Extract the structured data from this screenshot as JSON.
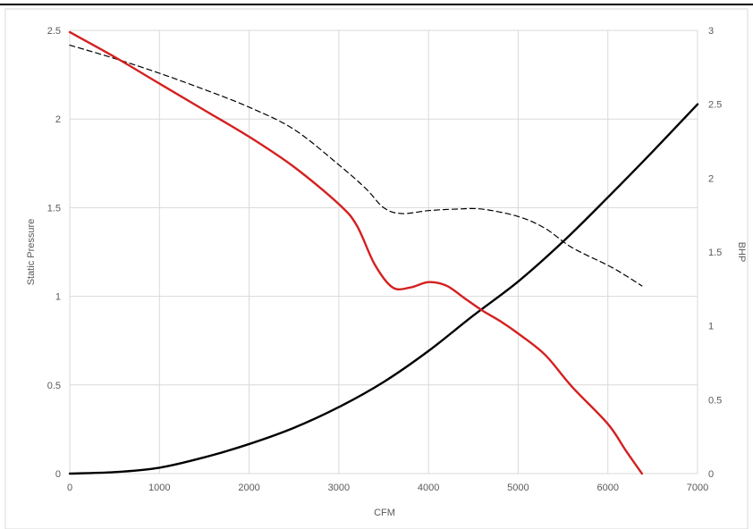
{
  "chart_data": {
    "type": "line",
    "title": "",
    "xlabel": "CFM",
    "ylabel_left": "Static Pressure",
    "ylabel_right": "BHP",
    "xlim": [
      0,
      7000
    ],
    "ylim_left": [
      0,
      2.5
    ],
    "ylim_right": [
      0,
      3
    ],
    "x_ticks": [
      "0",
      "1000",
      "2000",
      "3000",
      "4000",
      "5000",
      "6000",
      "7000"
    ],
    "y_left_ticks": [
      "0",
      "0.5",
      "1",
      "1.5",
      "2",
      "2.5"
    ],
    "y_right_ticks": [
      "0",
      "0.5",
      "1",
      "1.5",
      "2",
      "2.5",
      "3"
    ],
    "grid": true,
    "legend": "none",
    "colors": {
      "static_pressure": "#d42020",
      "bhp": "#000000",
      "system_curve": "#000000",
      "grid": "#d9d9d9",
      "axis_text": "#595959",
      "frame_top": "#000000"
    },
    "series": [
      {
        "axis": "left",
        "style": "solid-red",
        "x": [
          0,
          500,
          1000,
          1500,
          2000,
          2500,
          3000,
          3200,
          3400,
          3600,
          3800,
          4000,
          4200,
          4400,
          4600,
          4800,
          5000,
          5300,
          5600,
          6000,
          6200,
          6380
        ],
        "y": [
          2.49,
          2.35,
          2.2,
          2.05,
          1.9,
          1.73,
          1.52,
          1.4,
          1.18,
          1.05,
          1.05,
          1.08,
          1.06,
          0.99,
          0.92,
          0.86,
          0.79,
          0.67,
          0.49,
          0.28,
          0.13,
          0.0
        ]
      },
      {
        "axis": "right",
        "style": "solid-black",
        "x": [
          0,
          500,
          1000,
          1500,
          2000,
          2500,
          3000,
          3500,
          4000,
          4500,
          5000,
          5500,
          6000,
          6500,
          7000
        ],
        "y": [
          0.0,
          0.01,
          0.04,
          0.11,
          0.2,
          0.31,
          0.45,
          0.62,
          0.83,
          1.07,
          1.3,
          1.57,
          1.87,
          2.18,
          2.5
        ]
      },
      {
        "axis": "right",
        "style": "dashed-black",
        "x": [
          0,
          500,
          1000,
          1500,
          2000,
          2500,
          3000,
          3300,
          3500,
          3700,
          4000,
          4300,
          4600,
          5000,
          5300,
          5600,
          6000,
          6200,
          6380
        ],
        "y": [
          2.9,
          2.81,
          2.71,
          2.6,
          2.48,
          2.33,
          2.09,
          1.93,
          1.8,
          1.76,
          1.78,
          1.79,
          1.79,
          1.74,
          1.66,
          1.53,
          1.41,
          1.34,
          1.27
        ]
      }
    ]
  }
}
